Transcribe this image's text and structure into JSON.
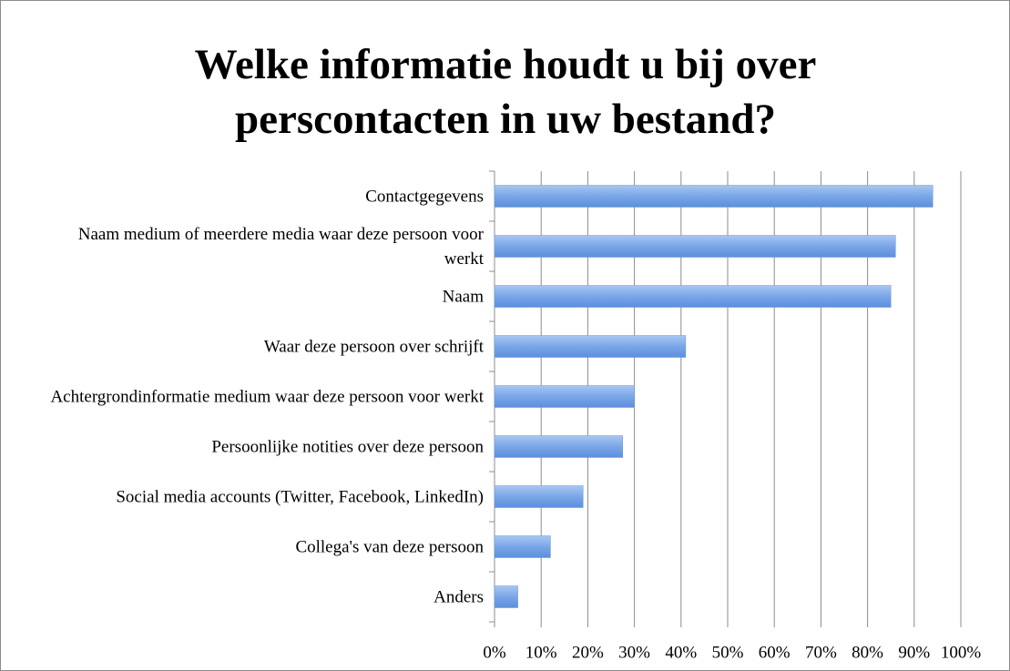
{
  "chart_data": {
    "type": "hbar",
    "title": "Welke informatie houdt u bij over perscontacten in uw bestand?",
    "categories": [
      "Contactgegevens",
      "Naam medium of meerdere media waar deze persoon voor werkt",
      "Naam",
      "Waar deze persoon over schrijft",
      "Achtergrondinformatie medium waar deze persoon voor werkt",
      "Persoonlijke notities over deze persoon",
      "Social media accounts (Twitter, Facebook, LinkedIn)",
      "Collega's van deze persoon",
      "Anders"
    ],
    "values": [
      94,
      86,
      85,
      41,
      30,
      27.5,
      19,
      12,
      5
    ],
    "color": "#7aa6e8",
    "xlim": [
      0,
      100
    ],
    "xticks": [
      {
        "value": 0,
        "label": "0%"
      },
      {
        "value": 10,
        "label": "10%"
      },
      {
        "value": 20,
        "label": "20%"
      },
      {
        "value": 30,
        "label": "30%"
      },
      {
        "value": 40,
        "label": "40%"
      },
      {
        "value": 50,
        "label": "50%"
      },
      {
        "value": 60,
        "label": "60%"
      },
      {
        "value": 70,
        "label": "70%"
      },
      {
        "value": 80,
        "label": "80%"
      },
      {
        "value": 90,
        "label": "90%"
      },
      {
        "value": 100,
        "label": "100%"
      }
    ],
    "grid": true
  }
}
